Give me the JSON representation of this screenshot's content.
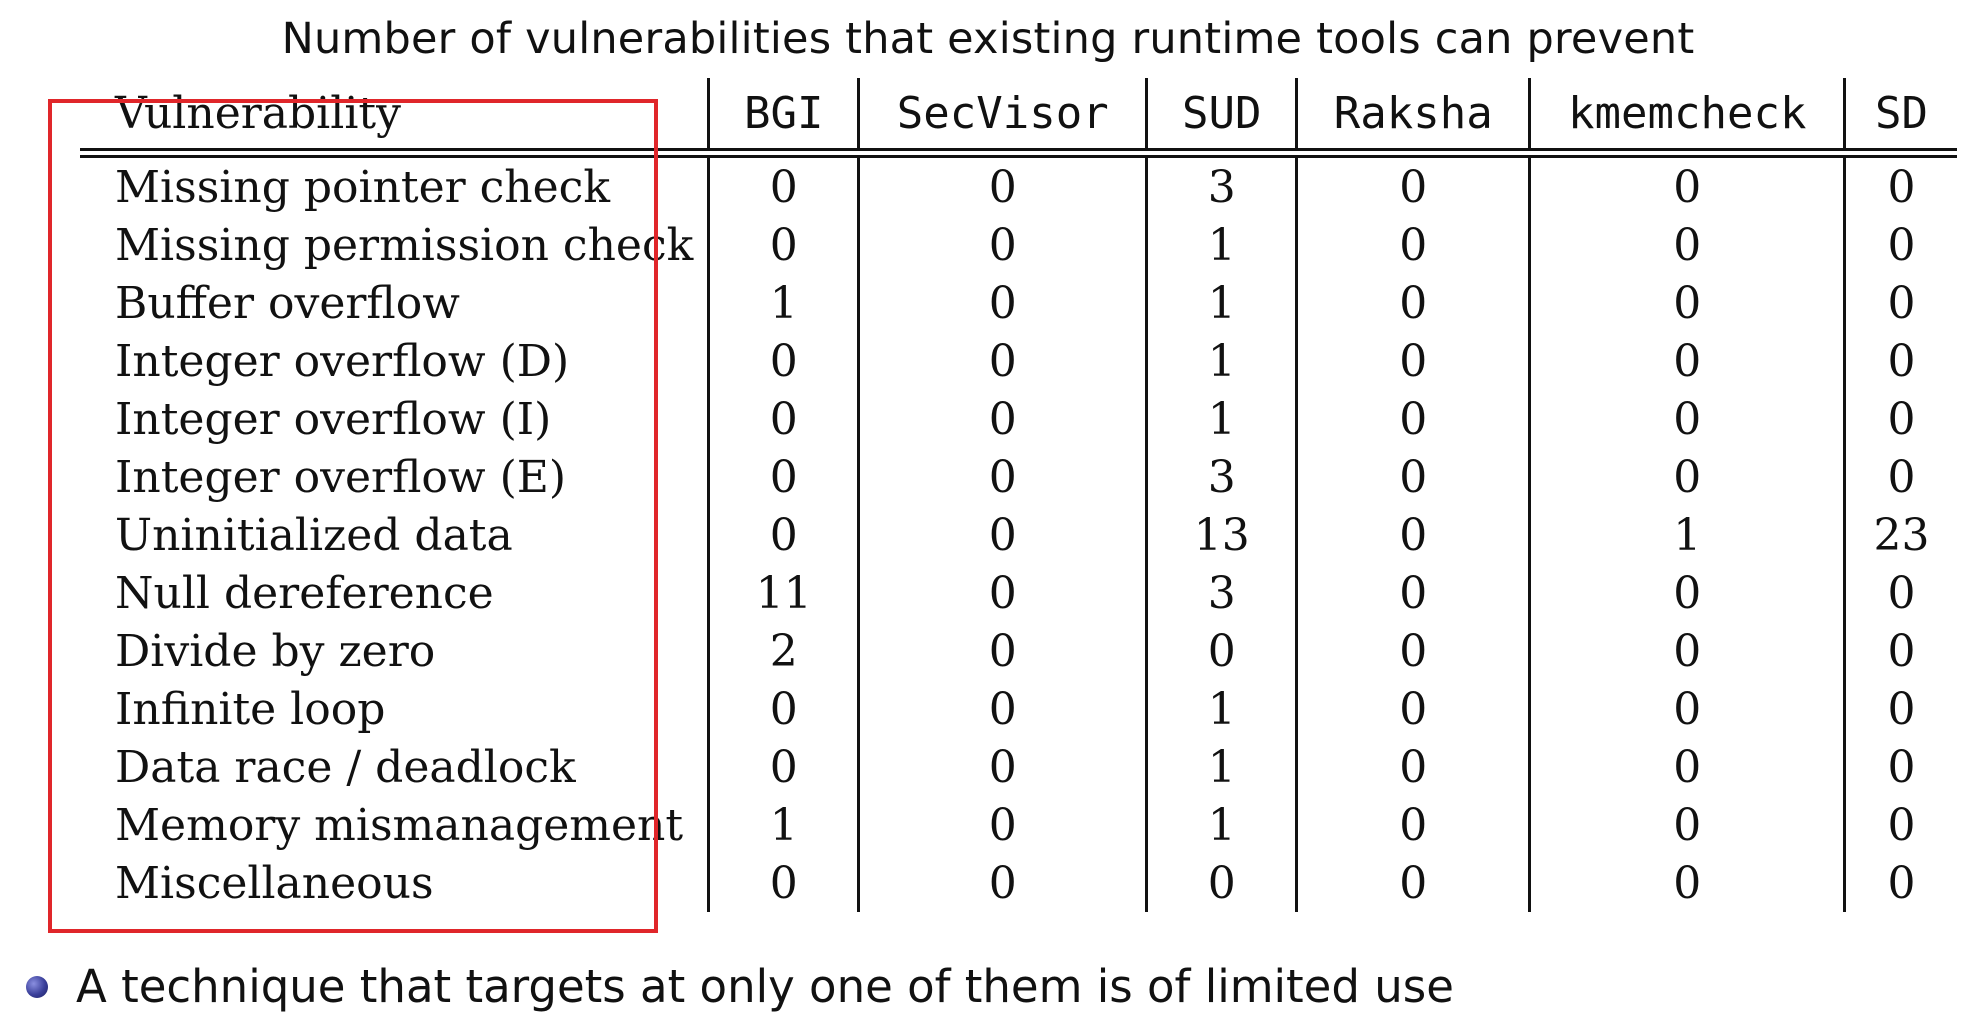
{
  "title": "Number of vulnerabilities that existing runtime tools can prevent",
  "table": {
    "row_header": "Vulnerability",
    "columns": [
      "BGI",
      "SecVisor",
      "SUD",
      "Raksha",
      "kmemcheck",
      "SD"
    ],
    "rows": [
      {
        "name": "Missing pointer check",
        "values": [
          "0",
          "0",
          "3",
          "0",
          "0",
          "0"
        ]
      },
      {
        "name": "Missing permission check",
        "values": [
          "0",
          "0",
          "1",
          "0",
          "0",
          "0"
        ]
      },
      {
        "name": "Buffer overflow",
        "values": [
          "1",
          "0",
          "1",
          "0",
          "0",
          "0"
        ]
      },
      {
        "name": "Integer overflow (D)",
        "values": [
          "0",
          "0",
          "1",
          "0",
          "0",
          "0"
        ]
      },
      {
        "name": "Integer overflow (I)",
        "values": [
          "0",
          "0",
          "1",
          "0",
          "0",
          "0"
        ]
      },
      {
        "name": "Integer overflow (E)",
        "values": [
          "0",
          "0",
          "3",
          "0",
          "0",
          "0"
        ]
      },
      {
        "name": "Uninitialized data",
        "values": [
          "0",
          "0",
          "13",
          "0",
          "1",
          "23"
        ]
      },
      {
        "name": "Null dereference",
        "values": [
          "11",
          "0",
          "3",
          "0",
          "0",
          "0"
        ]
      },
      {
        "name": "Divide by zero",
        "values": [
          "2",
          "0",
          "0",
          "0",
          "0",
          "0"
        ]
      },
      {
        "name": "Infinite loop",
        "values": [
          "0",
          "0",
          "1",
          "0",
          "0",
          "0"
        ]
      },
      {
        "name": "Data race / deadlock",
        "values": [
          "0",
          "0",
          "1",
          "0",
          "0",
          "0"
        ]
      },
      {
        "name": "Memory mismanagement",
        "values": [
          "1",
          "0",
          "1",
          "0",
          "0",
          "0"
        ]
      },
      {
        "name": "Miscellaneous",
        "values": [
          "0",
          "0",
          "0",
          "0",
          "0",
          "0"
        ]
      }
    ]
  },
  "bullet": "A technique that targets at only one of them is of limited use",
  "colors": {
    "highlight_box": "#e0262a",
    "bullet": "#3a3f9a",
    "text": "#111111"
  }
}
